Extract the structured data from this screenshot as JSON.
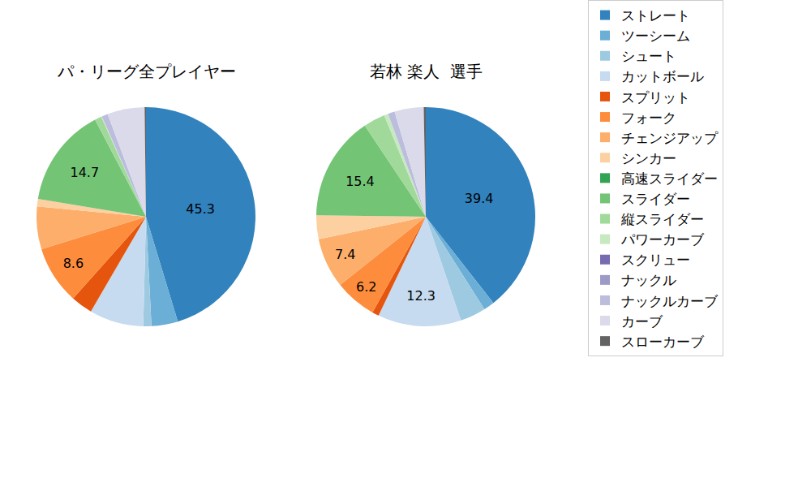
{
  "chart_data": [
    {
      "type": "pie",
      "title": "パ・リーグ全プレイヤー",
      "data_labels": true,
      "categories": [
        "ストレート",
        "ツーシーム",
        "シュート",
        "カットボール",
        "スプリット",
        "フォーク",
        "チェンジアップ",
        "シンカー",
        "高速スライダー",
        "スライダー",
        "縦スライダー",
        "パワーカーブ",
        "スクリュー",
        "ナックル",
        "ナックルカーブ",
        "カーブ",
        "スローカーブ"
      ],
      "values": [
        45.3,
        3.9,
        1.2,
        8.0,
        3.2,
        8.6,
        6.3,
        1.1,
        0,
        14.7,
        1.0,
        0.1,
        0,
        0,
        0.9,
        5.5,
        0.2
      ],
      "value_labels": [
        "45.3",
        null,
        null,
        null,
        null,
        "8.6",
        null,
        null,
        null,
        "14.7",
        null,
        null,
        null,
        null,
        null,
        null,
        null
      ],
      "colors": [
        "#3182bd",
        "#6baed6",
        "#9ecae1",
        "#c6dbef",
        "#e6550d",
        "#fd8d3c",
        "#fdae6b",
        "#fdd0a2",
        "#31a354",
        "#74c476",
        "#a1d99b",
        "#c7e9c0",
        "#756bb1",
        "#9e9ac8",
        "#bcbddc",
        "#dadaeb",
        "#636363"
      ]
    },
    {
      "type": "pie",
      "title": "若林 楽人  選手",
      "data_labels": true,
      "categories": [
        "ストレート",
        "ツーシーム",
        "シュート",
        "カットボール",
        "スプリット",
        "フォーク",
        "チェンジアップ",
        "シンカー",
        "高速スライダー",
        "スライダー",
        "縦スライダー",
        "パワーカーブ",
        "スクリュー",
        "ナックル",
        "ナックルカーブ",
        "カーブ",
        "スローカーブ"
      ],
      "values": [
        39.4,
        1.6,
        3.8,
        12.3,
        1.0,
        6.2,
        7.4,
        3.5,
        0,
        15.4,
        3.2,
        0.6,
        0,
        0,
        1.0,
        4.3,
        0.3
      ],
      "value_labels": [
        "39.4",
        null,
        null,
        "12.3",
        null,
        "6.2",
        "7.4",
        null,
        null,
        "15.4",
        null,
        null,
        null,
        null,
        null,
        null,
        null
      ],
      "colors": [
        "#3182bd",
        "#6baed6",
        "#9ecae1",
        "#c6dbef",
        "#e6550d",
        "#fd8d3c",
        "#fdae6b",
        "#fdd0a2",
        "#31a354",
        "#74c476",
        "#a1d99b",
        "#c7e9c0",
        "#756bb1",
        "#9e9ac8",
        "#bcbddc",
        "#dadaeb",
        "#636363"
      ]
    }
  ]
}
